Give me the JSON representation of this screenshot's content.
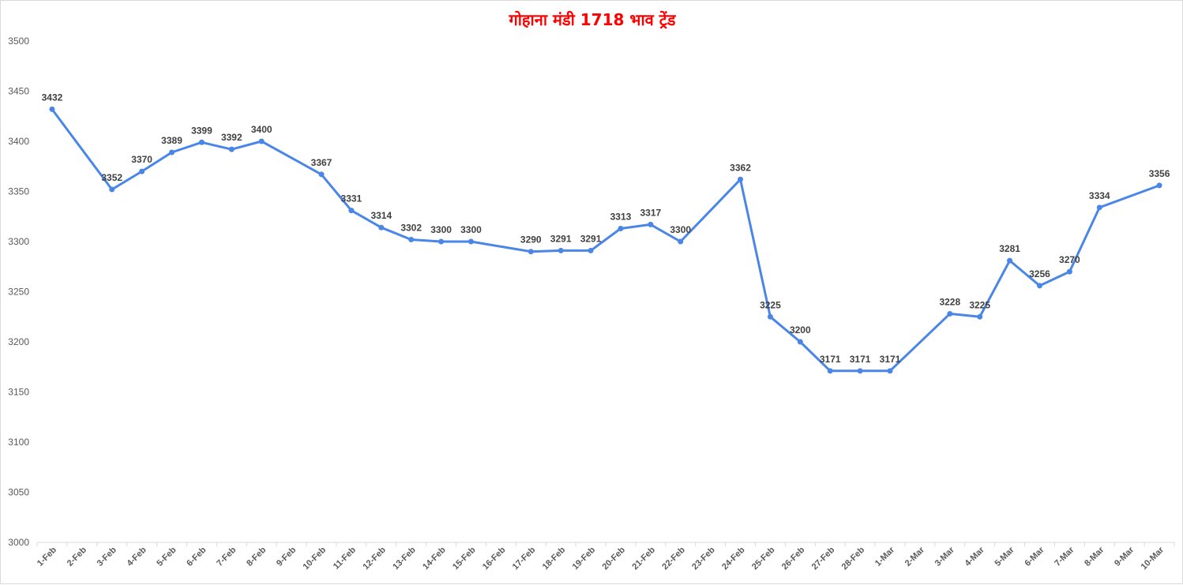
{
  "chart_data": {
    "type": "line",
    "title": "गोहाना मंडी 1718 भाव ट्रेंड",
    "xlabel": "",
    "ylabel": "",
    "ylim": [
      3000,
      3500
    ],
    "yticks": [
      3000,
      3050,
      3100,
      3150,
      3200,
      3250,
      3300,
      3350,
      3400,
      3450,
      3500
    ],
    "grid": false,
    "legend": "none",
    "line_color": "#4a86e8",
    "categories": [
      "1-Feb",
      "2-Feb",
      "3-Feb",
      "4-Feb",
      "5-Feb",
      "6-Feb",
      "7-Feb",
      "8-Feb",
      "9-Feb",
      "10-Feb",
      "11-Feb",
      "12-Feb",
      "13-Feb",
      "14-Feb",
      "15-Feb",
      "16-Feb",
      "17-Feb",
      "18-Feb",
      "19-Feb",
      "20-Feb",
      "21-Feb",
      "22-Feb",
      "23-Feb",
      "24-Feb",
      "25-Feb",
      "26-Feb",
      "27-Feb",
      "28-Feb",
      "1-Mar",
      "2-Mar",
      "3-Mar",
      "4-Mar",
      "5-Mar",
      "6-Mar",
      "7-Mar",
      "8-Mar",
      "9-Mar",
      "10-Mar"
    ],
    "points": [
      {
        "x": "1-Feb",
        "y": 3432
      },
      {
        "x": "3-Feb",
        "y": 3352
      },
      {
        "x": "4-Feb",
        "y": 3370
      },
      {
        "x": "5-Feb",
        "y": 3389
      },
      {
        "x": "6-Feb",
        "y": 3399
      },
      {
        "x": "7-Feb",
        "y": 3392
      },
      {
        "x": "8-Feb",
        "y": 3400
      },
      {
        "x": "10-Feb",
        "y": 3367
      },
      {
        "x": "11-Feb",
        "y": 3331
      },
      {
        "x": "12-Feb",
        "y": 3314
      },
      {
        "x": "13-Feb",
        "y": 3302
      },
      {
        "x": "14-Feb",
        "y": 3300
      },
      {
        "x": "15-Feb",
        "y": 3300
      },
      {
        "x": "17-Feb",
        "y": 3290
      },
      {
        "x": "18-Feb",
        "y": 3291
      },
      {
        "x": "19-Feb",
        "y": 3291
      },
      {
        "x": "20-Feb",
        "y": 3313
      },
      {
        "x": "21-Feb",
        "y": 3317
      },
      {
        "x": "22-Feb",
        "y": 3300
      },
      {
        "x": "24-Feb",
        "y": 3362
      },
      {
        "x": "25-Feb",
        "y": 3225
      },
      {
        "x": "26-Feb",
        "y": 3200
      },
      {
        "x": "27-Feb",
        "y": 3171
      },
      {
        "x": "28-Feb",
        "y": 3171
      },
      {
        "x": "1-Mar",
        "y": 3171
      },
      {
        "x": "3-Mar",
        "y": 3228
      },
      {
        "x": "4-Mar",
        "y": 3225
      },
      {
        "x": "5-Mar",
        "y": 3281
      },
      {
        "x": "6-Mar",
        "y": 3256
      },
      {
        "x": "7-Mar",
        "y": 3270
      },
      {
        "x": "8-Mar",
        "y": 3334
      },
      {
        "x": "10-Mar",
        "y": 3356
      }
    ]
  }
}
